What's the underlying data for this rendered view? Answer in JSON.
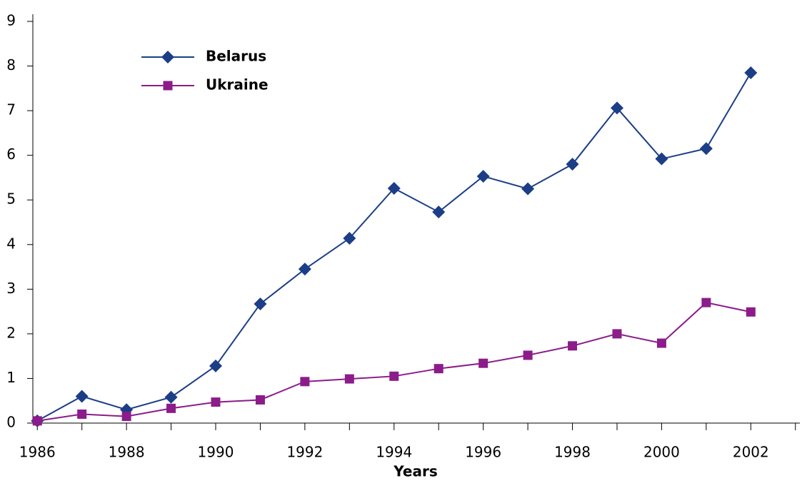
{
  "chart_data": {
    "type": "line",
    "x_label": "Years",
    "x": [
      1986,
      1987,
      1988,
      1989,
      1990,
      1991,
      1992,
      1993,
      1994,
      1995,
      1996,
      1997,
      1998,
      1999,
      2000,
      2001,
      2002
    ],
    "series": [
      {
        "name": "Belarus",
        "color": "#1b3e87",
        "marker": "diamond",
        "values": [
          0.05,
          0.6,
          0.3,
          0.58,
          1.28,
          2.67,
          3.45,
          4.14,
          5.26,
          4.73,
          5.53,
          5.25,
          5.8,
          7.06,
          5.92,
          6.15,
          7.85
        ]
      },
      {
        "name": "Ukraine",
        "color": "#8b1c8a",
        "marker": "square",
        "values": [
          0.05,
          0.2,
          0.15,
          0.33,
          0.47,
          0.52,
          0.93,
          0.99,
          1.05,
          1.22,
          1.34,
          1.52,
          1.73,
          2.0,
          1.79,
          2.7,
          2.49
        ]
      }
    ],
    "xlim": [
      1985.9,
      2003.1
    ],
    "xticks": [
      1986,
      1988,
      1990,
      1992,
      1994,
      1996,
      1998,
      2000,
      2002
    ],
    "x_minor_ticks": [
      1987,
      1989,
      1991,
      1993,
      1995,
      1997,
      1999,
      2001,
      2003
    ],
    "ylim": [
      0,
      9
    ],
    "yticks": [
      0,
      1,
      2,
      3,
      4,
      5,
      6,
      7,
      8,
      9
    ],
    "grid": false,
    "legend": "upper left"
  }
}
